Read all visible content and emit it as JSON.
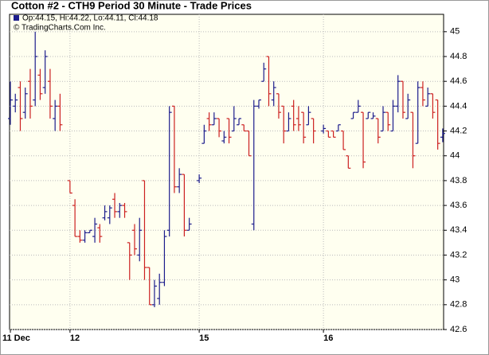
{
  "chart_data": {
    "type": "ohlc",
    "title": "Cotton #2 - CTH9 Period 30 Minute - Trade Prices",
    "legend_text": "Op:44.15, Hi:44.22, Lo:44.11, Cl:44.18",
    "copyright": "© TradingCharts.Com Inc.",
    "up_color": "#1c1c8c",
    "down_color": "#cc2020",
    "categories": [
      "11 Dec",
      null,
      null,
      null,
      null,
      null,
      null,
      null,
      null,
      null,
      null,
      null,
      "12",
      null,
      null,
      null,
      null,
      null,
      null,
      null,
      null,
      null,
      null,
      null,
      null,
      null,
      null,
      null,
      null,
      null,
      null,
      null,
      null,
      null,
      null,
      null,
      null,
      null,
      "15",
      null,
      null,
      null,
      null,
      null,
      null,
      null,
      null,
      null,
      null,
      null,
      null,
      null,
      null,
      null,
      null,
      null,
      null,
      null,
      null,
      null,
      null,
      null,
      null,
      "16",
      null,
      null,
      null,
      null,
      null,
      null,
      null,
      null,
      null,
      null,
      null,
      null,
      null,
      null,
      null,
      null,
      null,
      null,
      null,
      null,
      null,
      null,
      null,
      null
    ],
    "open": [
      44.3,
      44.4,
      44.55,
      44.35,
      44.6,
      44.45,
      44.65,
      44.55,
      44.6,
      44.3,
      44.4,
      null,
      43.8,
      43.6,
      43.35,
      43.32,
      43.38,
      43.35,
      43.42,
      43.5,
      43.5,
      43.65,
      43.55,
      43.6,
      43.3,
      43.4,
      43.2,
      43.8,
      43.1,
      42.8,
      42.85,
      42.98,
      43.4,
      44.4,
      43.75,
      43.85,
      43.4,
      null,
      43.8,
      44.1,
      44.3,
      44.25,
      44.3,
      44.12,
      44.3,
      44.2,
      44.25,
      44.25,
      44.2,
      43.45,
      44.4,
      44.6,
      44.8,
      44.45,
      44.5,
      44.4,
      44.2,
      44.4,
      44.3,
      44.35,
      44.25,
      44.3,
      null,
      44.2,
      44.2,
      44.2,
      44.2,
      44.2,
      44.0,
      44.3,
      44.35,
      44.35,
      44.3,
      44.3,
      44.3,
      44.2,
      44.35,
      44.2,
      44.4,
      44.6,
      44.3,
      44.35,
      44.1,
      44.55,
      44.4,
      44.5,
      44.45,
      44.15
    ],
    "high": [
      44.6,
      44.5,
      44.6,
      44.55,
      44.7,
      45.0,
      44.7,
      44.85,
      44.7,
      44.45,
      44.5,
      null,
      43.8,
      43.65,
      43.4,
      43.4,
      43.4,
      43.5,
      43.45,
      43.6,
      43.6,
      43.7,
      43.62,
      43.62,
      43.3,
      43.45,
      43.5,
      43.8,
      43.1,
      43.0,
      43.05,
      43.4,
      44.4,
      44.4,
      43.9,
      43.85,
      43.5,
      null,
      43.85,
      44.25,
      44.35,
      44.35,
      44.3,
      44.2,
      44.3,
      44.4,
      44.3,
      44.25,
      44.2,
      44.45,
      44.45,
      44.75,
      44.8,
      44.6,
      44.5,
      44.4,
      44.35,
      44.45,
      44.4,
      44.35,
      44.4,
      44.3,
      null,
      44.25,
      44.2,
      44.2,
      44.25,
      44.2,
      44.0,
      44.35,
      44.45,
      44.35,
      44.35,
      44.35,
      44.3,
      44.4,
      44.35,
      44.45,
      44.65,
      44.6,
      44.5,
      44.35,
      44.6,
      44.6,
      44.55,
      44.5,
      44.45,
      44.22
    ],
    "low": [
      44.25,
      44.35,
      44.2,
      44.3,
      44.3,
      44.4,
      44.45,
      44.5,
      44.3,
      44.2,
      44.2,
      null,
      43.7,
      43.35,
      43.3,
      43.3,
      43.38,
      43.3,
      43.3,
      43.48,
      43.45,
      43.5,
      43.5,
      43.5,
      43.0,
      43.2,
      43.15,
      43.0,
      42.8,
      42.78,
      42.8,
      42.95,
      43.35,
      43.7,
      43.7,
      43.35,
      43.4,
      null,
      43.78,
      44.1,
      44.2,
      44.25,
      44.15,
      44.1,
      44.1,
      44.2,
      44.25,
      44.2,
      44.0,
      43.4,
      44.38,
      44.6,
      44.4,
      44.4,
      44.3,
      44.1,
      44.2,
      44.2,
      44.2,
      44.1,
      44.25,
      44.1,
      null,
      44.18,
      44.15,
      44.15,
      44.2,
      44.05,
      43.9,
      44.3,
      44.35,
      43.9,
      44.3,
      44.3,
      44.1,
      44.2,
      44.2,
      44.2,
      44.35,
      44.3,
      44.3,
      43.9,
      44.1,
      44.4,
      44.4,
      44.3,
      44.05,
      44.11
    ],
    "close": [
      44.45,
      44.45,
      44.3,
      44.5,
      44.4,
      44.8,
      44.5,
      44.8,
      44.4,
      44.4,
      44.25,
      null,
      43.7,
      43.35,
      43.32,
      43.38,
      43.4,
      43.45,
      43.35,
      43.55,
      43.58,
      43.55,
      43.6,
      43.55,
      43.2,
      43.25,
      43.4,
      43.1,
      42.8,
      42.95,
      42.98,
      43.35,
      44.35,
      43.75,
      43.85,
      43.4,
      43.45,
      null,
      43.82,
      44.2,
      44.25,
      44.3,
      44.2,
      44.15,
      44.15,
      44.3,
      44.3,
      44.2,
      44.0,
      44.4,
      44.45,
      44.7,
      44.5,
      44.55,
      44.35,
      44.2,
      44.3,
      44.25,
      44.25,
      44.15,
      44.35,
      44.2,
      null,
      44.22,
      44.15,
      44.15,
      44.25,
      44.05,
      43.9,
      44.35,
      44.4,
      43.95,
      44.35,
      44.32,
      44.15,
      44.35,
      44.25,
      44.4,
      44.6,
      44.35,
      44.45,
      44.0,
      44.55,
      44.45,
      44.5,
      44.35,
      44.1,
      44.18
    ],
    "ylim": [
      42.6,
      45.14
    ],
    "yticks": [
      42.6,
      42.8,
      43,
      43.2,
      43.4,
      43.6,
      43.8,
      44,
      44.2,
      44.4,
      44.6,
      44.8,
      45
    ],
    "grid": true
  }
}
